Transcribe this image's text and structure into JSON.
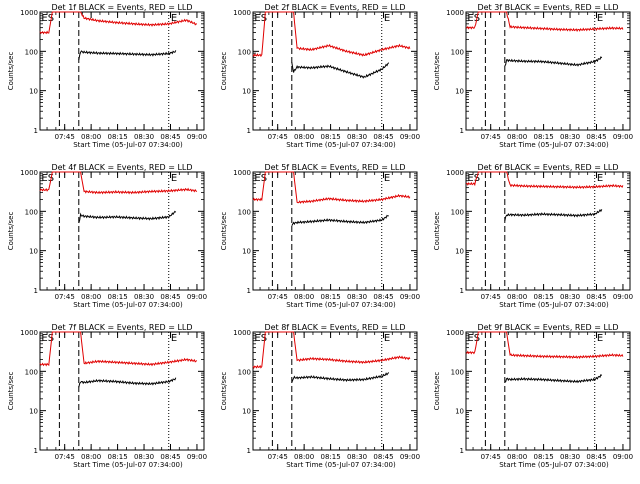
{
  "figure": {
    "background": "#ffffff",
    "colors": {
      "events": "#000000",
      "lld": "#e00000",
      "axis": "#000000"
    }
  },
  "chart_data": [
    {
      "type": "line",
      "title": "Det 1f BLACK = Events, RED = LLD",
      "xlabel": "Start Time (05-Jul-07 07:34:00)",
      "ylabel": "Counts/sec",
      "yscale": "log",
      "ylim": [
        1,
        1000
      ],
      "xlim_minutes": [
        -3,
        90
      ],
      "x_tick_labels": [
        "07:45",
        "08:00",
        "08:15",
        "08:30",
        "08:45",
        "09:00"
      ],
      "y_tick_labels": [
        "1",
        "10",
        "100",
        "1000"
      ],
      "region_labels": [
        "E",
        "S",
        "E"
      ],
      "series": [
        {
          "name": "BLACK = Events",
          "color": "#000000",
          "x": [
            19,
            20,
            22,
            30,
            40,
            50,
            60,
            70,
            74
          ],
          "y": [
            60,
            100,
            95,
            90,
            88,
            85,
            82,
            88,
            100
          ]
        },
        {
          "name": "RED = LLD",
          "color": "#e00000",
          "x": [
            -3,
            2,
            4,
            10,
            19,
            20,
            22,
            30,
            40,
            50,
            60,
            70,
            80,
            86
          ],
          "y": [
            300,
            300,
            1000,
            1000,
            1000,
            1000,
            700,
            600,
            540,
            500,
            470,
            500,
            620,
            480
          ]
        }
      ],
      "markers": {
        "dashed_x": [
          8,
          19
        ],
        "dotted_x": [
          70
        ]
      }
    },
    {
      "type": "line",
      "title": "Det 2f BLACK = Events, RED = LLD",
      "xlabel": "Start Time (05-Jul-07 07:34:00)",
      "ylabel": "Counts/sec",
      "yscale": "log",
      "ylim": [
        1,
        1000
      ],
      "xlim_minutes": [
        -3,
        90
      ],
      "x_tick_labels": [
        "07:45",
        "08:00",
        "08:15",
        "08:30",
        "08:45",
        "09:00"
      ],
      "y_tick_labels": [
        "1",
        "10",
        "100",
        "1000"
      ],
      "region_labels": [
        "E",
        "S",
        "E"
      ],
      "series": [
        {
          "name": "BLACK = Events",
          "color": "#000000",
          "x": [
            19,
            20,
            22,
            30,
            40,
            50,
            60,
            70,
            74
          ],
          "y": [
            50,
            30,
            40,
            38,
            42,
            30,
            22,
            35,
            50
          ]
        },
        {
          "name": "RED = LLD",
          "color": "#e00000",
          "x": [
            -3,
            2,
            4,
            10,
            19,
            20,
            22,
            30,
            40,
            50,
            60,
            70,
            80,
            86
          ],
          "y": [
            80,
            80,
            1000,
            1000,
            1000,
            1000,
            120,
            110,
            140,
            100,
            80,
            110,
            140,
            120
          ]
        }
      ],
      "markers": {
        "dashed_x": [
          8,
          19
        ],
        "dotted_x": [
          70
        ]
      }
    },
    {
      "type": "line",
      "title": "Det 3f BLACK = Events, RED = LLD",
      "xlabel": "Start Time (05-Jul-07 07:34:00)",
      "ylabel": "Counts/sec",
      "yscale": "log",
      "ylim": [
        1,
        1000
      ],
      "xlim_minutes": [
        -3,
        90
      ],
      "x_tick_labels": [
        "07:45",
        "08:00",
        "08:15",
        "08:30",
        "08:45",
        "09:00"
      ],
      "y_tick_labels": [
        "1",
        "10",
        "100",
        "1000"
      ],
      "region_labels": [
        "E",
        "S",
        "E"
      ],
      "series": [
        {
          "name": "BLACK = Events",
          "color": "#000000",
          "x": [
            19,
            20,
            22,
            30,
            40,
            50,
            60,
            70,
            74
          ],
          "y": [
            40,
            60,
            58,
            56,
            55,
            50,
            45,
            55,
            70
          ]
        },
        {
          "name": "RED = LLD",
          "color": "#e00000",
          "x": [
            -3,
            2,
            4,
            10,
            19,
            20,
            22,
            30,
            40,
            50,
            60,
            70,
            80,
            86
          ],
          "y": [
            400,
            400,
            1000,
            1000,
            1000,
            1000,
            420,
            400,
            380,
            360,
            350,
            370,
            390,
            380
          ]
        }
      ],
      "markers": {
        "dashed_x": [
          8,
          19
        ],
        "dotted_x": [
          70
        ]
      }
    },
    {
      "type": "line",
      "title": "Det 4f BLACK = Events, RED = LLD",
      "xlabel": "Start Time (05-Jul-07 07:34:00)",
      "ylabel": "Counts/sec",
      "yscale": "log",
      "ylim": [
        1,
        1000
      ],
      "xlim_minutes": [
        -3,
        90
      ],
      "x_tick_labels": [
        "07:45",
        "08:00",
        "08:15",
        "08:30",
        "08:45",
        "09:00"
      ],
      "y_tick_labels": [
        "1",
        "10",
        "100",
        "1000"
      ],
      "region_labels": [
        "E",
        "S",
        "E"
      ],
      "series": [
        {
          "name": "BLACK = Events",
          "color": "#000000",
          "x": [
            19,
            20,
            22,
            30,
            40,
            50,
            60,
            70,
            74
          ],
          "y": [
            50,
            80,
            75,
            70,
            72,
            68,
            65,
            72,
            100
          ]
        },
        {
          "name": "RED = LLD",
          "color": "#e00000",
          "x": [
            -3,
            2,
            4,
            10,
            19,
            20,
            22,
            30,
            40,
            50,
            60,
            70,
            80,
            86
          ],
          "y": [
            350,
            350,
            1000,
            1000,
            1000,
            1000,
            320,
            300,
            310,
            300,
            320,
            330,
            360,
            330
          ]
        }
      ],
      "markers": {
        "dashed_x": [
          8,
          19
        ],
        "dotted_x": [
          70
        ]
      }
    },
    {
      "type": "line",
      "title": "Det 5f BLACK = Events, RED = LLD",
      "xlabel": "Start Time (05-Jul-07 07:34:00)",
      "ylabel": "Counts/sec",
      "yscale": "log",
      "ylim": [
        1,
        1000
      ],
      "xlim_minutes": [
        -3,
        90
      ],
      "x_tick_labels": [
        "07:45",
        "08:00",
        "08:15",
        "08:30",
        "08:45",
        "09:00"
      ],
      "y_tick_labels": [
        "1",
        "10",
        "100",
        "1000"
      ],
      "region_labels": [
        "E",
        "S",
        "E"
      ],
      "series": [
        {
          "name": "BLACK = Events",
          "color": "#000000",
          "x": [
            19,
            20,
            22,
            30,
            40,
            50,
            60,
            70,
            74
          ],
          "y": [
            45,
            50,
            52,
            55,
            60,
            55,
            52,
            60,
            80
          ]
        },
        {
          "name": "RED = LLD",
          "color": "#e00000",
          "x": [
            -3,
            2,
            4,
            10,
            19,
            20,
            22,
            30,
            40,
            50,
            60,
            70,
            80,
            86
          ],
          "y": [
            200,
            200,
            1000,
            1000,
            1000,
            1000,
            170,
            180,
            210,
            190,
            180,
            200,
            250,
            230
          ]
        }
      ],
      "markers": {
        "dashed_x": [
          8,
          19
        ],
        "dotted_x": [
          70
        ]
      }
    },
    {
      "type": "line",
      "title": "Det 6f BLACK = Events, RED = LLD",
      "xlabel": "Start Time (05-Jul-07 07:34:00)",
      "ylabel": "Counts/sec",
      "yscale": "log",
      "ylim": [
        1,
        1000
      ],
      "xlim_minutes": [
        -3,
        90
      ],
      "x_tick_labels": [
        "07:45",
        "08:00",
        "08:15",
        "08:30",
        "08:45",
        "09:00"
      ],
      "y_tick_labels": [
        "1",
        "10",
        "100",
        "1000"
      ],
      "region_labels": [
        "E",
        "S",
        "E"
      ],
      "series": [
        {
          "name": "BLACK = Events",
          "color": "#000000",
          "x": [
            19,
            20,
            22,
            30,
            40,
            50,
            60,
            70,
            74
          ],
          "y": [
            60,
            80,
            82,
            80,
            85,
            82,
            78,
            85,
            110
          ]
        },
        {
          "name": "RED = LLD",
          "color": "#e00000",
          "x": [
            -3,
            2,
            4,
            10,
            19,
            20,
            22,
            30,
            40,
            50,
            60,
            70,
            80,
            86
          ],
          "y": [
            500,
            500,
            1000,
            1000,
            1000,
            1000,
            460,
            440,
            430,
            420,
            410,
            420,
            450,
            430
          ]
        }
      ],
      "markers": {
        "dashed_x": [
          8,
          19
        ],
        "dotted_x": [
          70
        ]
      }
    },
    {
      "type": "line",
      "title": "Det 7f BLACK = Events, RED = LLD",
      "xlabel": "Start Time (05-Jul-07 07:34:00)",
      "ylabel": "Counts/sec",
      "yscale": "log",
      "ylim": [
        1,
        1000
      ],
      "xlim_minutes": [
        -3,
        90
      ],
      "x_tick_labels": [
        "07:45",
        "08:00",
        "08:15",
        "08:30",
        "08:45",
        "09:00"
      ],
      "y_tick_labels": [
        "1",
        "10",
        "100",
        "1000"
      ],
      "region_labels": [
        "E",
        "S",
        "E"
      ],
      "series": [
        {
          "name": "BLACK = Events",
          "color": "#000000",
          "x": [
            19,
            20,
            22,
            30,
            40,
            50,
            60,
            70,
            74
          ],
          "y": [
            40,
            55,
            52,
            58,
            55,
            50,
            48,
            55,
            65
          ]
        },
        {
          "name": "RED = LLD",
          "color": "#e00000",
          "x": [
            -3,
            2,
            4,
            10,
            19,
            20,
            22,
            30,
            40,
            50,
            60,
            70,
            80,
            86
          ],
          "y": [
            150,
            150,
            1000,
            1000,
            1000,
            1000,
            160,
            180,
            170,
            160,
            150,
            170,
            200,
            180
          ]
        }
      ],
      "markers": {
        "dashed_x": [
          8,
          19
        ],
        "dotted_x": [
          70
        ]
      }
    },
    {
      "type": "line",
      "title": "Det 8f BLACK = Events, RED = LLD",
      "xlabel": "Start Time (05-Jul-07 07:34:00)",
      "ylabel": "Counts/sec",
      "yscale": "log",
      "ylim": [
        1,
        1000
      ],
      "xlim_minutes": [
        -3,
        90
      ],
      "x_tick_labels": [
        "07:45",
        "08:00",
        "08:15",
        "08:30",
        "08:45",
        "09:00"
      ],
      "y_tick_labels": [
        "1",
        "10",
        "100",
        "1000"
      ],
      "region_labels": [
        "E",
        "S",
        "E"
      ],
      "series": [
        {
          "name": "BLACK = Events",
          "color": "#000000",
          "x": [
            19,
            20,
            22,
            30,
            40,
            50,
            60,
            70,
            74
          ],
          "y": [
            50,
            70,
            68,
            72,
            65,
            60,
            62,
            75,
            90
          ]
        },
        {
          "name": "RED = LLD",
          "color": "#e00000",
          "x": [
            -3,
            2,
            4,
            10,
            19,
            20,
            22,
            30,
            40,
            50,
            60,
            70,
            80,
            86
          ],
          "y": [
            130,
            130,
            1000,
            1000,
            1000,
            1000,
            190,
            210,
            200,
            180,
            170,
            190,
            230,
            210
          ]
        }
      ],
      "markers": {
        "dashed_x": [
          8,
          19
        ],
        "dotted_x": [
          70
        ]
      }
    },
    {
      "type": "line",
      "title": "Det 9f BLACK = Events, RED = LLD",
      "xlabel": "Start Time (05-Jul-07 07:34:00)",
      "ylabel": "Counts/sec",
      "yscale": "log",
      "ylim": [
        1,
        1000
      ],
      "xlim_minutes": [
        -3,
        90
      ],
      "x_tick_labels": [
        "07:45",
        "08:00",
        "08:15",
        "08:30",
        "08:45",
        "09:00"
      ],
      "y_tick_labels": [
        "1",
        "10",
        "100",
        "1000"
      ],
      "region_labels": [
        "E",
        "S",
        "E"
      ],
      "series": [
        {
          "name": "BLACK = Events",
          "color": "#000000",
          "x": [
            19,
            20,
            22,
            30,
            40,
            50,
            60,
            70,
            74
          ],
          "y": [
            50,
            65,
            62,
            64,
            62,
            58,
            55,
            62,
            80
          ]
        },
        {
          "name": "RED = LLD",
          "color": "#e00000",
          "x": [
            -3,
            2,
            4,
            10,
            19,
            20,
            22,
            30,
            40,
            50,
            60,
            70,
            80,
            86
          ],
          "y": [
            300,
            300,
            1000,
            1000,
            1000,
            1000,
            260,
            250,
            240,
            235,
            230,
            240,
            260,
            250
          ]
        }
      ],
      "markers": {
        "dashed_x": [
          8,
          19
        ],
        "dotted_x": [
          70
        ]
      }
    }
  ]
}
